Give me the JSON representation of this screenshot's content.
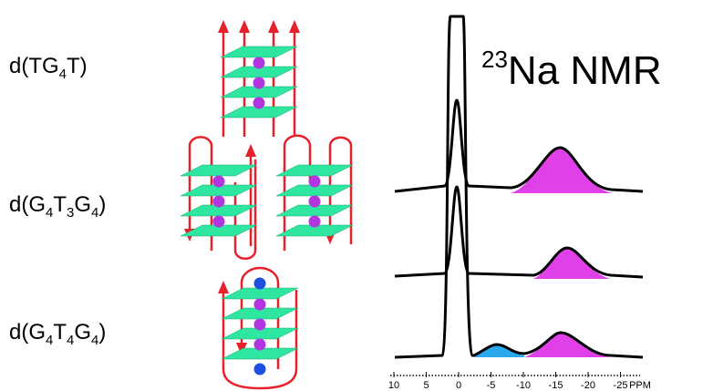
{
  "labels": [
    {
      "parts": [
        "d(TG",
        "4",
        "T)"
      ]
    },
    {
      "parts": [
        "d(G",
        "4",
        "T",
        "3",
        "G",
        "4",
        ")"
      ]
    },
    {
      "parts": [
        "d(G",
        "4",
        "T",
        "4",
        "G",
        "4",
        ")"
      ]
    }
  ],
  "title": {
    "parts": [
      "23",
      "Na NMR"
    ]
  },
  "axis": {
    "ticks": [
      10,
      5,
      0,
      -5,
      -10,
      -15,
      -20,
      -25
    ],
    "unit": "PPM"
  }
}
